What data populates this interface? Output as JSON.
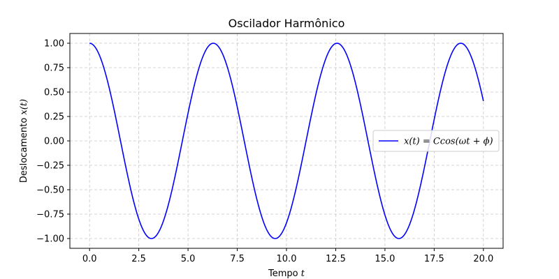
{
  "chart_data": {
    "type": "line",
    "title": "Oscilador Harmônico",
    "xlabel": "Tempo",
    "xlabel_var": "t",
    "ylabel": "Deslocamento",
    "ylabel_var": "x(t)",
    "xlim": [
      -1.0,
      21.0
    ],
    "ylim": [
      -1.1,
      1.1
    ],
    "x_ticks": [
      0.0,
      2.5,
      5.0,
      7.5,
      10.0,
      12.5,
      15.0,
      17.5,
      20.0
    ],
    "x_tick_labels": [
      "0.0",
      "2.5",
      "5.0",
      "7.5",
      "10.0",
      "12.5",
      "15.0",
      "17.5",
      "20.0"
    ],
    "y_ticks": [
      1.0,
      0.75,
      0.5,
      0.25,
      0.0,
      -0.25,
      -0.5,
      -0.75,
      -1.0
    ],
    "y_tick_labels": [
      "1.00",
      "0.75",
      "0.50",
      "0.25",
      "0.00",
      "−0.25",
      "−0.50",
      "−0.75",
      "−1.00"
    ],
    "grid": true,
    "legend_position": "center-right",
    "series": [
      {
        "name": "x(t) = Ccos(ωt + ϕ)",
        "color": "#0000ff",
        "function": "cos",
        "amplitude": 1.0,
        "omega": 1.0,
        "phase": 0.0,
        "x_range": [
          0.0,
          20.0
        ],
        "x": [
          0.0,
          1.0,
          2.0,
          3.0,
          3.14,
          4.0,
          5.0,
          6.0,
          6.28,
          7.0,
          8.0,
          9.0,
          9.42,
          10.0,
          11.0,
          12.0,
          12.57,
          13.0,
          14.0,
          15.0,
          15.71,
          16.0,
          17.0,
          18.0,
          18.85,
          19.0,
          20.0
        ],
        "y": [
          1.0,
          0.54,
          -0.42,
          -0.99,
          -1.0,
          -0.65,
          0.28,
          0.96,
          1.0,
          0.75,
          -0.15,
          -0.91,
          -1.0,
          -0.84,
          0.0,
          0.84,
          1.0,
          0.91,
          0.14,
          -0.76,
          -1.0,
          -0.96,
          -0.28,
          0.66,
          1.0,
          0.99,
          0.41
        ]
      }
    ]
  }
}
